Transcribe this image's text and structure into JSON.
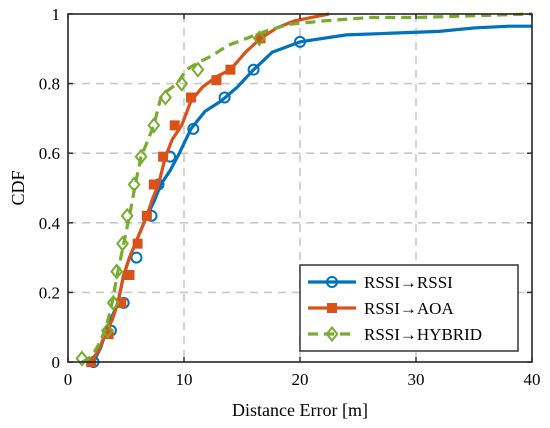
{
  "chart_data": {
    "type": "line",
    "xlabel": "Distance Error [m]",
    "ylabel": "CDF",
    "xlim": [
      0,
      40
    ],
    "ylim": [
      0,
      1
    ],
    "xticks": [
      0,
      10,
      20,
      30,
      40
    ],
    "yticks": [
      0,
      0.2,
      0.4,
      0.6,
      0.8,
      1
    ],
    "xtick_labels": [
      "0",
      "10",
      "20",
      "30",
      "40"
    ],
    "ytick_labels": [
      "0",
      "0.2",
      "0.4",
      "0.6",
      "0.8",
      "1"
    ],
    "grid": true,
    "legend_position": "bottom-right",
    "series": [
      {
        "name": "RSSI→RSSI",
        "color": "#0072BD",
        "style": "solid",
        "marker": "circle",
        "x": [
          2.2,
          2.8,
          3.3,
          3.8,
          4.3,
          4.8,
          5.3,
          5.8,
          6.3,
          6.8,
          7.4,
          8.0,
          8.8,
          9.6,
          10.6,
          11.8,
          13.2,
          14.6,
          16.0,
          17.6,
          20.0,
          24.0,
          28.0,
          32.0,
          35.0,
          38.0,
          40.0
        ],
        "y": [
          0.0,
          0.04,
          0.09,
          0.13,
          0.17,
          0.25,
          0.3,
          0.34,
          0.38,
          0.42,
          0.46,
          0.51,
          0.55,
          0.6,
          0.67,
          0.72,
          0.75,
          0.79,
          0.84,
          0.89,
          0.92,
          0.94,
          0.945,
          0.95,
          0.96,
          0.965,
          0.965
        ],
        "marker_x": [
          2.2,
          3.7,
          4.8,
          5.9,
          7.2,
          7.8,
          8.8,
          10.8,
          13.5,
          16.0,
          20.0
        ],
        "marker_y": [
          0.0,
          0.09,
          0.17,
          0.3,
          0.42,
          0.51,
          0.59,
          0.67,
          0.76,
          0.84,
          0.92
        ]
      },
      {
        "name": "RSSI→AOA",
        "color": "#D95319",
        "style": "solid",
        "marker": "square",
        "x": [
          1.9,
          2.6,
          3.2,
          3.8,
          4.3,
          4.8,
          5.3,
          5.8,
          6.3,
          6.8,
          7.3,
          7.8,
          8.4,
          9.0,
          9.8,
          10.6,
          11.6,
          12.8,
          14.0,
          15.3,
          16.6,
          18.0,
          19.5,
          21.0,
          22.5
        ],
        "y": [
          0.0,
          0.03,
          0.08,
          0.12,
          0.17,
          0.25,
          0.3,
          0.34,
          0.38,
          0.42,
          0.47,
          0.51,
          0.59,
          0.64,
          0.68,
          0.75,
          0.79,
          0.82,
          0.84,
          0.89,
          0.93,
          0.96,
          0.98,
          0.99,
          1.0
        ],
        "marker_x": [
          2.0,
          3.5,
          4.6,
          5.3,
          6.0,
          6.8,
          7.4,
          8.2,
          9.2,
          10.6,
          12.8,
          14.0,
          16.6
        ],
        "marker_y": [
          0.0,
          0.08,
          0.17,
          0.25,
          0.34,
          0.42,
          0.51,
          0.59,
          0.68,
          0.76,
          0.81,
          0.84,
          0.93
        ]
      },
      {
        "name": "RSSI→HYBRID",
        "color": "#77AC30",
        "style": "dashed",
        "marker": "diamond",
        "x": [
          1.2,
          1.8,
          2.3,
          2.8,
          3.3,
          3.8,
          4.3,
          4.8,
          5.3,
          5.8,
          6.3,
          6.8,
          7.4,
          8.0,
          8.6,
          9.4,
          10.2,
          11.2,
          12.4,
          13.8,
          15.4,
          17.0,
          19.0,
          22.0,
          26.0,
          30.0,
          35.0,
          40.0
        ],
        "y": [
          0.0,
          0.01,
          0.03,
          0.06,
          0.1,
          0.17,
          0.26,
          0.34,
          0.42,
          0.51,
          0.59,
          0.63,
          0.68,
          0.76,
          0.78,
          0.8,
          0.84,
          0.86,
          0.88,
          0.91,
          0.93,
          0.95,
          0.97,
          0.98,
          0.99,
          0.99,
          0.995,
          1.0
        ],
        "marker_x": [
          1.2,
          3.4,
          3.9,
          4.2,
          4.7,
          5.1,
          5.7,
          6.3,
          7.4,
          8.4,
          9.8,
          11.2,
          16.5
        ],
        "marker_y": [
          0.01,
          0.09,
          0.17,
          0.26,
          0.34,
          0.42,
          0.51,
          0.59,
          0.68,
          0.76,
          0.8,
          0.84,
          0.93
        ]
      }
    ]
  }
}
